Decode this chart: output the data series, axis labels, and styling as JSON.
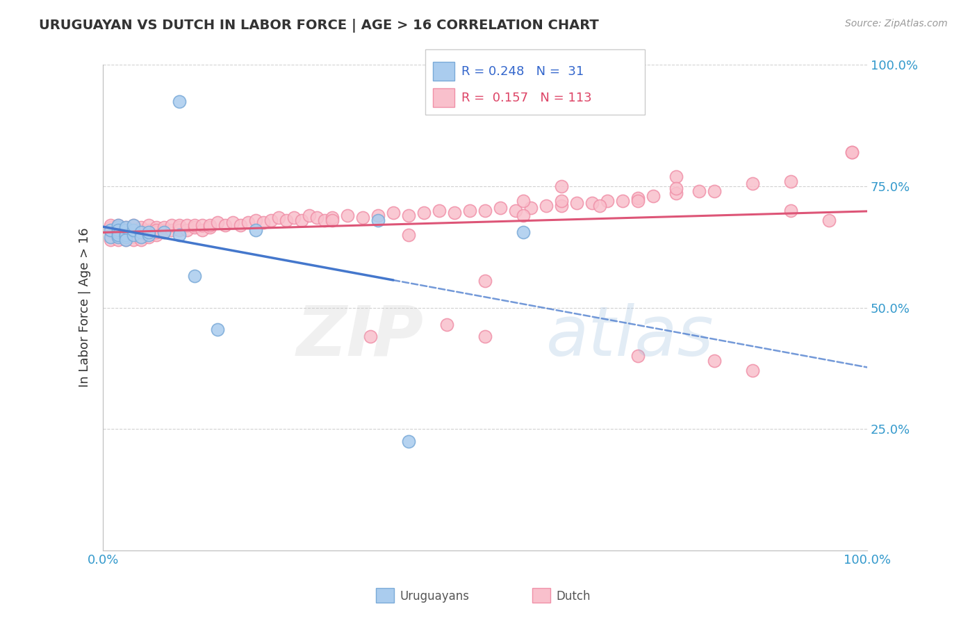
{
  "title": "URUGUAYAN VS DUTCH IN LABOR FORCE | AGE > 16 CORRELATION CHART",
  "source_text": "Source: ZipAtlas.com",
  "ylabel": "In Labor Force | Age > 16",
  "xlim": [
    0.0,
    1.0
  ],
  "ylim": [
    0.0,
    1.0
  ],
  "xtick_labels": [
    "0.0%",
    "100.0%"
  ],
  "ytick_labels": [
    "25.0%",
    "50.0%",
    "75.0%",
    "100.0%"
  ],
  "ytick_positions": [
    0.25,
    0.5,
    0.75,
    1.0
  ],
  "uruguayan_fill_color": "#aaccee",
  "uruguayan_edge_color": "#7aaad8",
  "dutch_fill_color": "#f9c0cc",
  "dutch_edge_color": "#f090a8",
  "uruguayan_line_color": "#4477cc",
  "dutch_line_color": "#dd5577",
  "uruguayan_R": 0.248,
  "uruguayan_N": 31,
  "dutch_R": 0.157,
  "dutch_N": 113,
  "uruguayan_x": [
    0.01,
    0.01,
    0.02,
    0.02,
    0.02,
    0.02,
    0.02,
    0.02,
    0.03,
    0.03,
    0.03,
    0.03,
    0.03,
    0.03,
    0.03,
    0.04,
    0.04,
    0.04,
    0.05,
    0.05,
    0.06,
    0.06,
    0.08,
    0.1,
    0.12,
    0.15,
    0.2,
    0.36,
    0.4,
    0.55,
    0.1
  ],
  "uruguayan_y": [
    0.645,
    0.66,
    0.645,
    0.655,
    0.665,
    0.67,
    0.66,
    0.65,
    0.65,
    0.655,
    0.66,
    0.645,
    0.65,
    0.64,
    0.665,
    0.65,
    0.66,
    0.67,
    0.655,
    0.645,
    0.65,
    0.655,
    0.655,
    0.65,
    0.565,
    0.455,
    0.66,
    0.68,
    0.225,
    0.655,
    0.925
  ],
  "dutch_x": [
    0.01,
    0.01,
    0.01,
    0.01,
    0.02,
    0.02,
    0.02,
    0.02,
    0.02,
    0.02,
    0.03,
    0.03,
    0.03,
    0.03,
    0.03,
    0.03,
    0.04,
    0.04,
    0.04,
    0.04,
    0.04,
    0.05,
    0.05,
    0.05,
    0.05,
    0.05,
    0.06,
    0.06,
    0.06,
    0.06,
    0.07,
    0.07,
    0.07,
    0.07,
    0.08,
    0.08,
    0.08,
    0.09,
    0.09,
    0.1,
    0.1,
    0.1,
    0.11,
    0.11,
    0.12,
    0.12,
    0.13,
    0.13,
    0.14,
    0.14,
    0.15,
    0.16,
    0.17,
    0.18,
    0.19,
    0.2,
    0.21,
    0.22,
    0.23,
    0.24,
    0.25,
    0.26,
    0.27,
    0.28,
    0.29,
    0.3,
    0.32,
    0.34,
    0.36,
    0.38,
    0.4,
    0.42,
    0.44,
    0.46,
    0.48,
    0.5,
    0.52,
    0.54,
    0.56,
    0.58,
    0.6,
    0.62,
    0.64,
    0.66,
    0.68,
    0.7,
    0.72,
    0.75,
    0.78,
    0.8,
    0.85,
    0.9,
    0.35,
    0.45,
    0.5,
    0.55,
    0.6,
    0.7,
    0.75,
    0.8,
    0.85,
    0.9,
    0.95,
    0.98,
    0.5,
    0.6,
    0.7,
    0.75,
    0.3,
    0.4,
    0.55,
    0.65,
    0.98
  ],
  "dutch_y": [
    0.655,
    0.665,
    0.64,
    0.67,
    0.655,
    0.66,
    0.645,
    0.665,
    0.64,
    0.67,
    0.65,
    0.66,
    0.655,
    0.645,
    0.665,
    0.64,
    0.655,
    0.66,
    0.67,
    0.645,
    0.64,
    0.66,
    0.655,
    0.645,
    0.665,
    0.64,
    0.655,
    0.66,
    0.67,
    0.645,
    0.665,
    0.65,
    0.655,
    0.66,
    0.66,
    0.655,
    0.665,
    0.66,
    0.67,
    0.665,
    0.66,
    0.67,
    0.66,
    0.67,
    0.665,
    0.67,
    0.66,
    0.67,
    0.665,
    0.67,
    0.675,
    0.67,
    0.675,
    0.67,
    0.675,
    0.68,
    0.675,
    0.68,
    0.685,
    0.68,
    0.685,
    0.68,
    0.69,
    0.685,
    0.68,
    0.685,
    0.69,
    0.685,
    0.69,
    0.695,
    0.69,
    0.695,
    0.7,
    0.695,
    0.7,
    0.7,
    0.705,
    0.7,
    0.705,
    0.71,
    0.71,
    0.715,
    0.715,
    0.72,
    0.72,
    0.725,
    0.73,
    0.735,
    0.74,
    0.74,
    0.755,
    0.76,
    0.44,
    0.465,
    0.555,
    0.69,
    0.75,
    0.4,
    0.77,
    0.39,
    0.37,
    0.7,
    0.68,
    0.82,
    0.44,
    0.72,
    0.72,
    0.745,
    0.68,
    0.65,
    0.72,
    0.71,
    0.82
  ]
}
